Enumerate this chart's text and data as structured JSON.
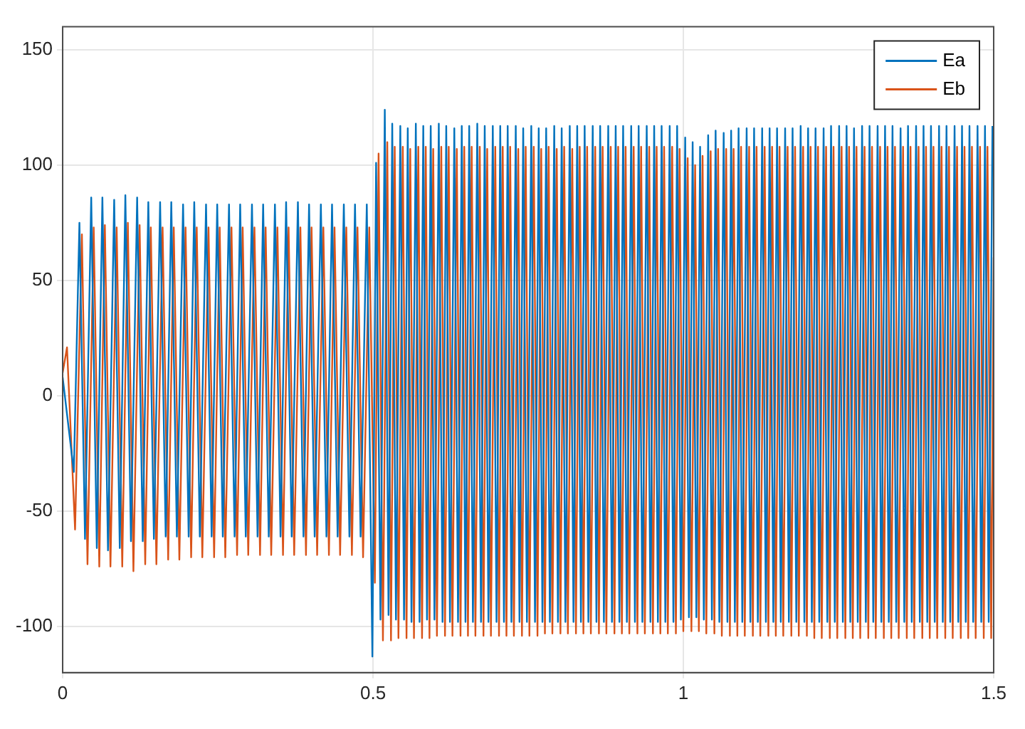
{
  "chart_data": {
    "type": "line",
    "xlim": [
      0,
      1.5
    ],
    "xticks": [
      0,
      0.5,
      1,
      1.5
    ],
    "ylim": [
      -120,
      160
    ],
    "yticks": [
      -100,
      -50,
      0,
      50,
      100,
      150
    ],
    "grid": true,
    "legend": "top right",
    "marker": "none",
    "line_style": "solid",
    "series": [
      {
        "name": "Ea",
        "color": "#0072bd",
        "x": [
          0,
          0.018,
          0.027,
          0.036,
          0.046,
          0.055,
          0.064,
          0.073,
          0.083,
          0.092,
          0.101,
          0.11,
          0.12,
          0.129,
          0.138,
          0.147,
          0.157,
          0.166,
          0.175,
          0.184,
          0.194,
          0.203,
          0.212,
          0.221,
          0.231,
          0.24,
          0.249,
          0.258,
          0.268,
          0.277,
          0.286,
          0.295,
          0.305,
          0.314,
          0.323,
          0.332,
          0.342,
          0.351,
          0.36,
          0.369,
          0.379,
          0.388,
          0.397,
          0.406,
          0.416,
          0.425,
          0.434,
          0.443,
          0.453,
          0.462,
          0.471,
          0.48,
          0.49,
          0.499,
          0.505,
          0.512,
          0.519,
          0.525,
          0.531,
          0.537,
          0.544,
          0.55,
          0.556,
          0.562,
          0.569,
          0.575,
          0.581,
          0.587,
          0.593,
          0.599,
          0.606,
          0.612,
          0.618,
          0.624,
          0.631,
          0.637,
          0.643,
          0.649,
          0.655,
          0.661,
          0.668,
          0.674,
          0.68,
          0.686,
          0.693,
          0.699,
          0.705,
          0.711,
          0.717,
          0.723,
          0.73,
          0.736,
          0.742,
          0.748,
          0.755,
          0.761,
          0.767,
          0.773,
          0.779,
          0.785,
          0.792,
          0.798,
          0.804,
          0.81,
          0.817,
          0.823,
          0.829,
          0.835,
          0.841,
          0.847,
          0.854,
          0.86,
          0.866,
          0.872,
          0.879,
          0.885,
          0.891,
          0.897,
          0.903,
          0.909,
          0.916,
          0.922,
          0.928,
          0.934,
          0.941,
          0.947,
          0.953,
          0.959,
          0.965,
          0.971,
          0.978,
          0.984,
          0.99,
          0.996,
          1.003,
          1.009,
          1.015,
          1.021,
          1.027,
          1.033,
          1.04,
          1.046,
          1.052,
          1.058,
          1.065,
          1.071,
          1.077,
          1.083,
          1.089,
          1.095,
          1.102,
          1.108,
          1.114,
          1.12,
          1.127,
          1.133,
          1.139,
          1.145,
          1.151,
          1.157,
          1.164,
          1.17,
          1.176,
          1.182,
          1.189,
          1.195,
          1.201,
          1.207,
          1.213,
          1.219,
          1.226,
          1.232,
          1.238,
          1.244,
          1.251,
          1.257,
          1.263,
          1.269,
          1.275,
          1.281,
          1.288,
          1.294,
          1.3,
          1.306,
          1.313,
          1.319,
          1.325,
          1.331,
          1.337,
          1.343,
          1.35,
          1.356,
          1.362,
          1.368,
          1.375,
          1.381,
          1.387,
          1.393,
          1.399,
          1.405,
          1.412,
          1.418,
          1.424,
          1.43,
          1.437,
          1.443,
          1.449,
          1.455,
          1.461,
          1.467,
          1.474,
          1.48,
          1.486,
          1.492,
          1.498
        ],
        "values": [
          8,
          -33,
          75,
          -62,
          86,
          -66,
          86,
          -67,
          85,
          -66,
          87,
          -63,
          86,
          -63,
          84,
          -62,
          84,
          -61,
          84,
          -61,
          83,
          -61,
          84,
          -61,
          83,
          -61,
          83,
          -61,
          83,
          -61,
          83,
          -61,
          83,
          -61,
          83,
          -61,
          83,
          -61,
          84,
          -61,
          84,
          -61,
          83,
          -61,
          83,
          -61,
          83,
          -61,
          83,
          -61,
          83,
          -61,
          83,
          -113,
          101,
          -97,
          124,
          -95,
          118,
          -97,
          117,
          -97,
          116,
          -98,
          118,
          -98,
          117,
          -97,
          117,
          -97,
          118,
          -98,
          117,
          -98,
          116,
          -98,
          117,
          -98,
          117,
          -98,
          118,
          -98,
          117,
          -98,
          117,
          -98,
          117,
          -98,
          117,
          -98,
          117,
          -98,
          116,
          -98,
          117,
          -98,
          116,
          -98,
          116,
          -98,
          117,
          -98,
          116,
          -98,
          117,
          -98,
          117,
          -98,
          117,
          -98,
          117,
          -98,
          117,
          -98,
          117,
          -98,
          117,
          -98,
          117,
          -98,
          117,
          -98,
          117,
          -98,
          117,
          -98,
          117,
          -98,
          117,
          -98,
          117,
          -98,
          117,
          -97,
          112,
          -96,
          110,
          -96,
          108,
          -97,
          113,
          -97,
          115,
          -98,
          114,
          -98,
          115,
          -98,
          116,
          -98,
          116,
          -98,
          116,
          -98,
          116,
          -98,
          116,
          -98,
          116,
          -98,
          116,
          -98,
          116,
          -98,
          117,
          -98,
          116,
          -98,
          116,
          -98,
          116,
          -98,
          117,
          -98,
          117,
          -98,
          117,
          -98,
          116,
          -98,
          117,
          -98,
          117,
          -98,
          117,
          -98,
          117,
          -98,
          117,
          -98,
          116,
          -98,
          117,
          -98,
          117,
          -98,
          117,
          -98,
          117,
          -98,
          117,
          -98,
          117,
          -98,
          117,
          -98,
          117,
          -98,
          117,
          -98,
          117,
          -98,
          117,
          -98,
          117
        ]
      },
      {
        "name": "Eb",
        "color": "#d95319",
        "x": [
          0,
          0.007,
          0.02,
          0.031,
          0.04,
          0.05,
          0.059,
          0.068,
          0.077,
          0.087,
          0.096,
          0.105,
          0.114,
          0.124,
          0.133,
          0.142,
          0.151,
          0.161,
          0.17,
          0.179,
          0.188,
          0.198,
          0.207,
          0.216,
          0.225,
          0.235,
          0.244,
          0.253,
          0.262,
          0.272,
          0.281,
          0.29,
          0.299,
          0.309,
          0.318,
          0.327,
          0.336,
          0.346,
          0.355,
          0.364,
          0.373,
          0.383,
          0.392,
          0.401,
          0.41,
          0.42,
          0.429,
          0.438,
          0.447,
          0.457,
          0.466,
          0.475,
          0.484,
          0.494,
          0.503,
          0.509,
          0.516,
          0.523,
          0.529,
          0.535,
          0.541,
          0.548,
          0.554,
          0.56,
          0.566,
          0.573,
          0.579,
          0.585,
          0.591,
          0.597,
          0.603,
          0.61,
          0.616,
          0.622,
          0.628,
          0.635,
          0.641,
          0.647,
          0.653,
          0.659,
          0.665,
          0.672,
          0.678,
          0.684,
          0.69,
          0.697,
          0.703,
          0.709,
          0.715,
          0.721,
          0.727,
          0.734,
          0.74,
          0.746,
          0.752,
          0.759,
          0.765,
          0.771,
          0.777,
          0.783,
          0.789,
          0.796,
          0.802,
          0.808,
          0.814,
          0.821,
          0.827,
          0.833,
          0.839,
          0.845,
          0.851,
          0.858,
          0.864,
          0.87,
          0.876,
          0.883,
          0.889,
          0.895,
          0.901,
          0.907,
          0.913,
          0.92,
          0.926,
          0.932,
          0.938,
          0.945,
          0.951,
          0.957,
          0.963,
          0.969,
          0.975,
          0.982,
          0.988,
          0.994,
          1.0,
          1.007,
          1.013,
          1.019,
          1.025,
          1.031,
          1.037,
          1.044,
          1.05,
          1.056,
          1.062,
          1.069,
          1.075,
          1.081,
          1.087,
          1.093,
          1.099,
          1.106,
          1.112,
          1.118,
          1.124,
          1.131,
          1.137,
          1.143,
          1.149,
          1.155,
          1.161,
          1.168,
          1.174,
          1.18,
          1.186,
          1.193,
          1.199,
          1.205,
          1.211,
          1.217,
          1.223,
          1.23,
          1.236,
          1.242,
          1.248,
          1.255,
          1.261,
          1.267,
          1.273,
          1.279,
          1.285,
          1.292,
          1.298,
          1.304,
          1.31,
          1.317,
          1.323,
          1.329,
          1.335,
          1.341,
          1.347,
          1.354,
          1.36,
          1.366,
          1.372,
          1.379,
          1.385,
          1.391,
          1.397,
          1.403,
          1.409,
          1.416,
          1.422,
          1.428,
          1.434,
          1.441,
          1.447,
          1.453,
          1.459,
          1.465,
          1.471,
          1.478,
          1.484,
          1.49,
          1.496,
          1.5
        ],
        "values": [
          10,
          21,
          -58,
          70,
          -73,
          73,
          -74,
          74,
          -74,
          73,
          -74,
          75,
          -76,
          74,
          -73,
          73,
          -73,
          73,
          -71,
          73,
          -71,
          73,
          -70,
          73,
          -70,
          73,
          -70,
          73,
          -70,
          73,
          -69,
          73,
          -69,
          73,
          -69,
          73,
          -69,
          73,
          -69,
          73,
          -69,
          73,
          -69,
          73,
          -69,
          73,
          -69,
          73,
          -69,
          73,
          -69,
          73,
          -70,
          73,
          -81,
          105,
          -106,
          110,
          -106,
          108,
          -105,
          108,
          -105,
          107,
          -105,
          108,
          -105,
          108,
          -105,
          107,
          -104,
          108,
          -104,
          108,
          -104,
          107,
          -104,
          108,
          -104,
          108,
          -104,
          108,
          -104,
          107,
          -104,
          108,
          -104,
          108,
          -104,
          108,
          -104,
          107,
          -104,
          108,
          -104,
          108,
          -104,
          107,
          -103,
          108,
          -103,
          107,
          -103,
          108,
          -103,
          107,
          -103,
          108,
          -103,
          108,
          -103,
          108,
          -103,
          108,
          -103,
          108,
          -103,
          108,
          -103,
          108,
          -103,
          108,
          -103,
          108,
          -103,
          108,
          -103,
          108,
          -103,
          108,
          -103,
          108,
          -103,
          107,
          -102,
          103,
          -102,
          100,
          -102,
          104,
          -103,
          106,
          -103,
          107,
          -104,
          107,
          -104,
          107,
          -104,
          108,
          -104,
          108,
          -104,
          108,
          -104,
          108,
          -104,
          108,
          -104,
          108,
          -104,
          108,
          -104,
          108,
          -104,
          108,
          -104,
          108,
          -105,
          108,
          -105,
          108,
          -105,
          108,
          -105,
          108,
          -105,
          108,
          -105,
          108,
          -105,
          108,
          -105,
          108,
          -105,
          108,
          -105,
          108,
          -105,
          108,
          -105,
          108,
          -105,
          108,
          -105,
          108,
          -105,
          108,
          -105,
          108,
          -105,
          108,
          -105,
          108,
          -105,
          108,
          -105,
          108,
          -105,
          108,
          -105,
          108,
          -105,
          108,
          -105,
          60
        ]
      }
    ]
  }
}
